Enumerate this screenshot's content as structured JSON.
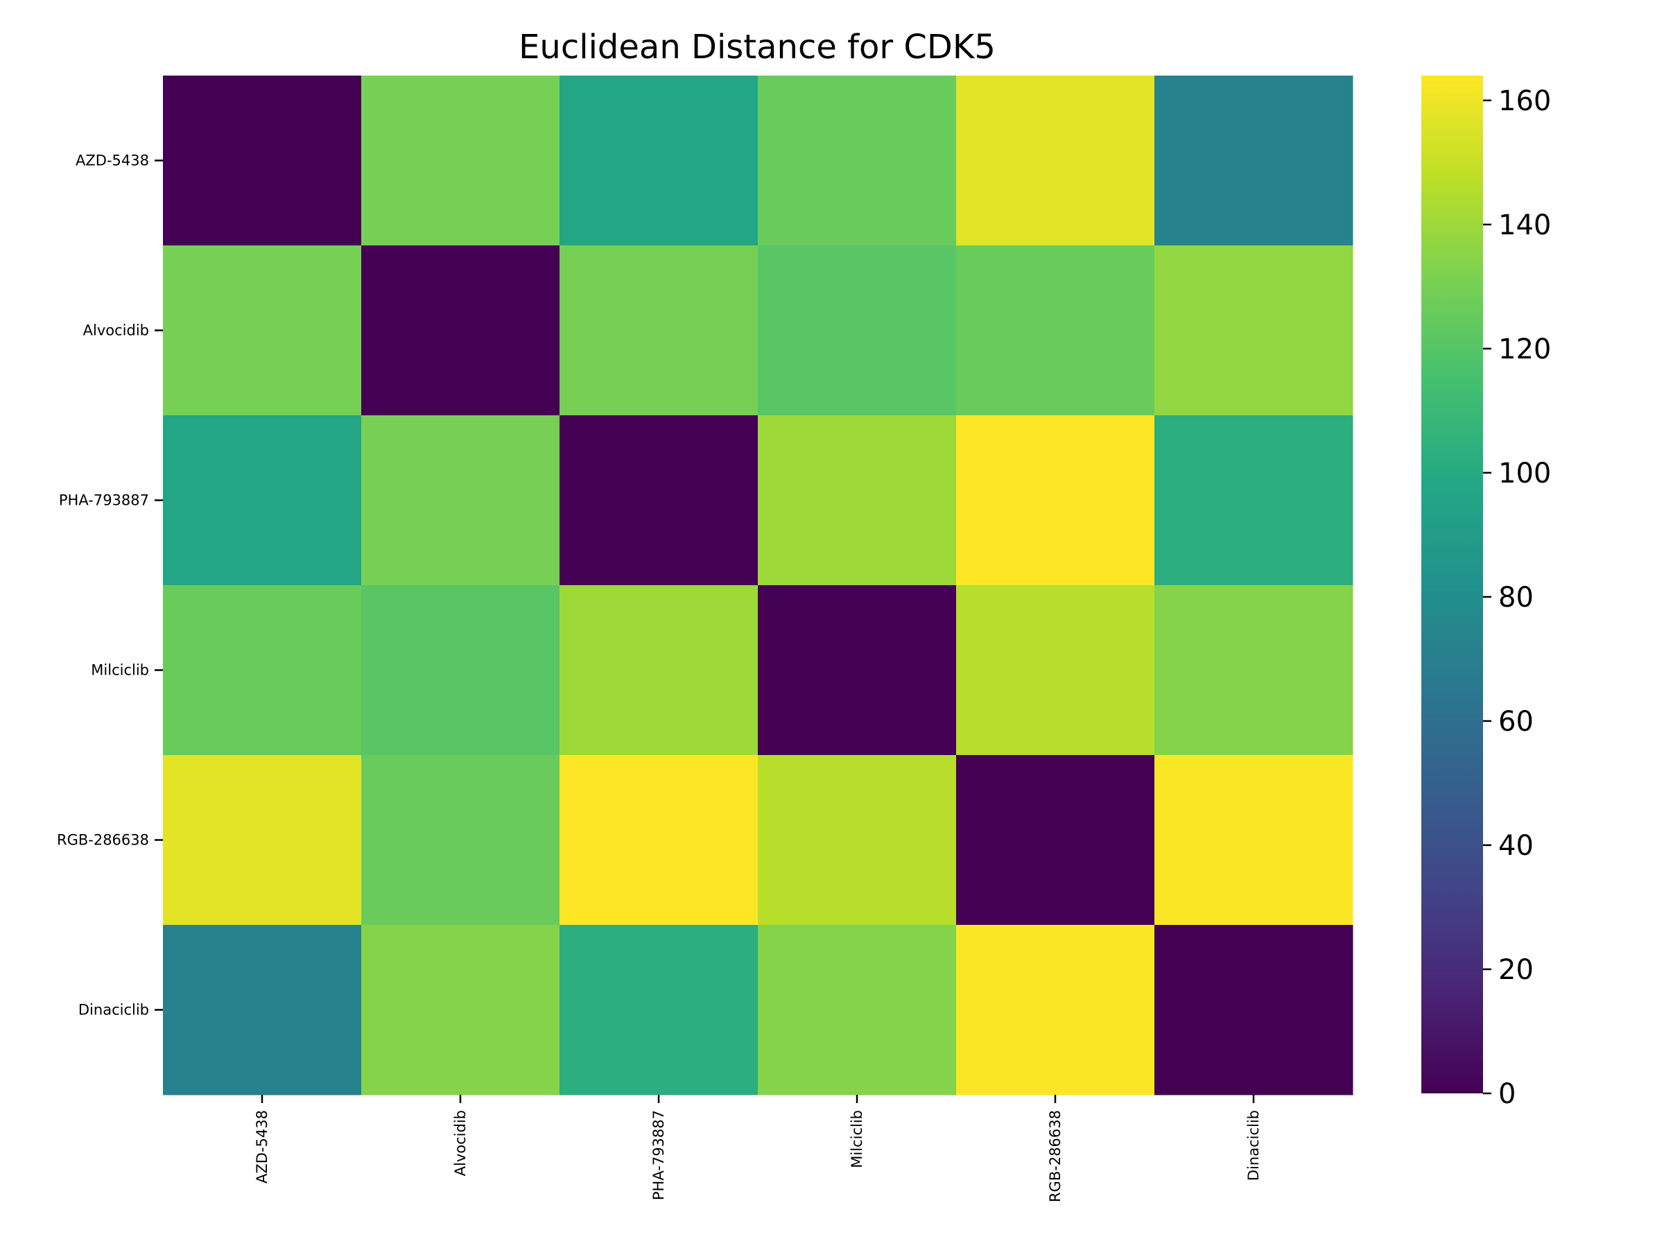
{
  "chart_data": {
    "type": "heatmap",
    "title": "Euclidean Distance for CDK5",
    "xlabel": "",
    "ylabel": "",
    "row_labels": [
      "AZD-5438",
      "Alvocidib",
      "PHA-793887",
      "Milciclib",
      "RGB-286638",
      "Dinaciclib"
    ],
    "col_labels": [
      "AZD-5438",
      "Alvocidib",
      "PHA-793887",
      "Milciclib",
      "RGB-286638",
      "Dinaciclib"
    ],
    "values": [
      [
        0,
        130,
        97,
        126,
        157,
        72
      ],
      [
        130,
        0,
        130,
        121,
        126,
        137
      ],
      [
        97,
        130,
        0,
        140,
        164,
        103
      ],
      [
        126,
        121,
        140,
        0,
        146,
        134
      ],
      [
        157,
        126,
        164,
        146,
        0,
        163
      ],
      [
        72,
        134,
        103,
        134,
        163,
        0
      ]
    ],
    "colormap": "viridis",
    "vmin": 0,
    "vmax": 164,
    "colorbar_ticks": [
      0,
      20,
      40,
      60,
      80,
      100,
      120,
      140,
      160
    ],
    "grid": false
  }
}
